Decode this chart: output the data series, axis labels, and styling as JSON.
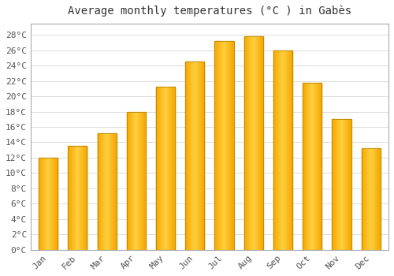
{
  "title": "Average monthly temperatures (°C ) in Gabès",
  "months": [
    "Jan",
    "Feb",
    "Mar",
    "Apr",
    "May",
    "Jun",
    "Jul",
    "Aug",
    "Sep",
    "Oct",
    "Nov",
    "Dec"
  ],
  "temperatures": [
    12.0,
    13.5,
    15.2,
    18.0,
    21.2,
    24.5,
    27.2,
    27.8,
    26.0,
    21.8,
    17.0,
    13.2
  ],
  "bar_color_left": "#F5A800",
  "bar_color_center": "#FFD040",
  "bar_color_right": "#F5A800",
  "bar_edge_color": "#B8860B",
  "background_color": "#FFFFFF",
  "plot_bg_color": "#FFFFFF",
  "grid_color": "#DDDDDD",
  "ytick_labels": [
    "0°C",
    "2°C",
    "4°C",
    "6°C",
    "8°C",
    "10°C",
    "12°C",
    "14°C",
    "16°C",
    "18°C",
    "20°C",
    "22°C",
    "24°C",
    "26°C",
    "28°C"
  ],
  "ytick_values": [
    0,
    2,
    4,
    6,
    8,
    10,
    12,
    14,
    16,
    18,
    20,
    22,
    24,
    26,
    28
  ],
  "ylim": [
    0,
    29.5
  ],
  "title_fontsize": 10,
  "tick_fontsize": 8,
  "font_family": "monospace",
  "spine_color": "#AAAAAA"
}
